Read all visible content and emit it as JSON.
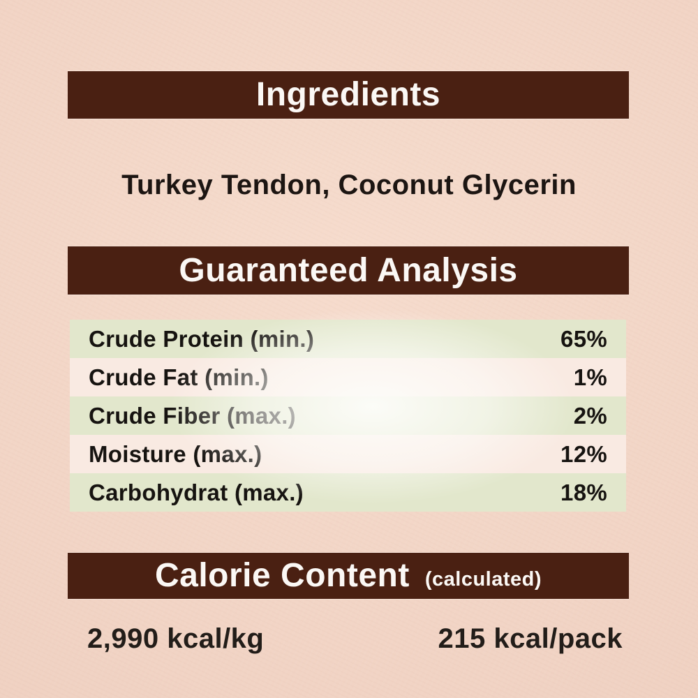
{
  "label": {
    "ingredients": {
      "title": "Ingredients",
      "text": "Turkey Tendon, Coconut Glycerin"
    },
    "guaranteed_analysis": {
      "title": "Guaranteed Analysis",
      "rows": [
        {
          "name": "Crude Protein (min.)",
          "value": "65%"
        },
        {
          "name": "Crude Fat (min.)",
          "value": "1%"
        },
        {
          "name": "Crude Fiber (max.)",
          "value": "2%"
        },
        {
          "name": "Moisture (max.)",
          "value": "12%"
        },
        {
          "name": "Carbohydrat (max.)",
          "value": "18%"
        }
      ]
    },
    "calorie_content": {
      "title": "Calorie Content",
      "subtitle": "(calculated)",
      "per_kg": "2,990 kcal/kg",
      "per_pack": "215 kcal/pack"
    },
    "colors": {
      "header_bar_brown": "#4a2012",
      "background_pink": "#f1d3c4",
      "row_green": "#e2e7cc",
      "row_pink": "#f9eae2",
      "header_text_white": "#fbf8f5",
      "body_text_dark": "#1c1512"
    }
  }
}
